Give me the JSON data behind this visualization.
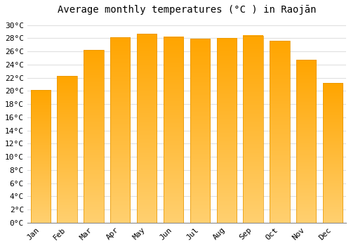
{
  "title": "Average monthly temperatures (°C ) in Raojān",
  "months": [
    "Jan",
    "Feb",
    "Mar",
    "Apr",
    "May",
    "Jun",
    "Jul",
    "Aug",
    "Sep",
    "Oct",
    "Nov",
    "Dec"
  ],
  "values": [
    20.1,
    22.3,
    26.2,
    28.1,
    28.7,
    28.2,
    27.9,
    28.0,
    28.4,
    27.6,
    24.7,
    21.2
  ],
  "bar_color_top": "#FFA500",
  "bar_color_bottom": "#FFD080",
  "bar_edge_color": "#E69500",
  "ylim": [
    0,
    31
  ],
  "yticks": [
    0,
    2,
    4,
    6,
    8,
    10,
    12,
    14,
    16,
    18,
    20,
    22,
    24,
    26,
    28,
    30
  ],
  "ytick_labels": [
    "0°C",
    "2°C",
    "4°C",
    "6°C",
    "8°C",
    "10°C",
    "12°C",
    "14°C",
    "16°C",
    "18°C",
    "20°C",
    "22°C",
    "24°C",
    "26°C",
    "28°C",
    "30°C"
  ],
  "background_color": "#ffffff",
  "grid_color": "#e0e0e0",
  "title_fontsize": 10,
  "tick_fontsize": 8,
  "font_family": "monospace"
}
